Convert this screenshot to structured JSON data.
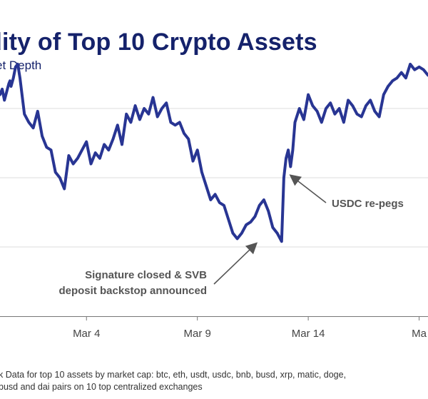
{
  "title": "dity of Top 10 Crypto Assets",
  "subtitle": "et Depth",
  "footnote": {
    "line1": "k Data for top 10 assets by market cap: btc, eth, usdt, usdc, bnb, busd, xrp, matic, doge,",
    "line2": "busd and dai pairs on 10 top centralized exchanges"
  },
  "colors": {
    "series": "#283593",
    "title": "#15226b",
    "annotation": "#555555",
    "grid": "#dcdcdc",
    "axis": "#777777"
  },
  "chart_data": {
    "type": "line",
    "title": "",
    "xlabel": "",
    "ylabel": "",
    "grid": true,
    "x_ticks": [
      "Mar 4",
      "Mar 9",
      "Mar 14",
      "Ma"
    ],
    "x_tick_days": [
      4,
      9,
      14,
      19
    ],
    "xlim": [
      0.1,
      19.4
    ],
    "ylim": [
      0,
      100
    ],
    "series": [
      {
        "name": "",
        "x": [
          0.1,
          0.2,
          0.3,
          0.4,
          0.5,
          0.55,
          0.6,
          0.7,
          0.8,
          0.9,
          1.0,
          1.2,
          1.4,
          1.6,
          1.8,
          2.0,
          2.2,
          2.4,
          2.6,
          2.8,
          3.0,
          3.2,
          3.4,
          3.6,
          3.8,
          4.0,
          4.2,
          4.4,
          4.6,
          4.8,
          5.0,
          5.2,
          5.4,
          5.6,
          5.8,
          6.0,
          6.2,
          6.4,
          6.6,
          6.8,
          7.0,
          7.2,
          7.4,
          7.6,
          7.8,
          8.0,
          8.2,
          8.4,
          8.6,
          8.8,
          9.0,
          9.2,
          9.4,
          9.6,
          9.8,
          10.0,
          10.2,
          10.4,
          10.6,
          10.8,
          11.0,
          11.2,
          11.4,
          11.6,
          11.8,
          12.0,
          12.2,
          12.4,
          12.6,
          12.8,
          12.9,
          13.0,
          13.1,
          13.2,
          13.3,
          13.4,
          13.6,
          13.8,
          14.0,
          14.1,
          14.2,
          14.4,
          14.6,
          14.8,
          15.0,
          15.2,
          15.4,
          15.6,
          15.8,
          16.0,
          16.2,
          16.4,
          16.6,
          16.8,
          17.0,
          17.2,
          17.4,
          17.6,
          17.8,
          18.0,
          18.2,
          18.4,
          18.6,
          18.8,
          19.0,
          19.2,
          19.4
        ],
        "y": [
          80,
          82,
          78,
          81,
          84,
          85,
          83,
          86,
          90,
          91,
          86,
          73,
          70,
          68,
          74,
          65,
          61,
          60,
          52,
          50,
          46,
          58,
          55,
          57,
          60,
          63,
          55,
          59,
          57,
          62,
          60,
          64,
          69,
          62,
          73,
          70,
          76,
          71,
          75,
          73,
          79,
          72,
          75,
          77,
          70,
          69,
          70,
          66,
          64,
          56,
          60,
          52,
          47,
          42,
          44,
          41,
          40,
          35,
          30,
          28,
          30,
          33,
          34,
          36,
          40,
          42,
          38,
          32,
          30,
          27,
          50,
          57,
          60,
          54,
          60,
          70,
          75,
          71,
          80,
          78,
          76,
          74,
          70,
          75,
          77,
          73,
          75,
          70,
          78,
          76,
          73,
          72,
          76,
          78,
          74,
          72,
          80,
          83,
          85,
          86,
          88,
          86,
          91,
          89,
          90,
          89,
          87
        ]
      }
    ],
    "annotations": [
      {
        "text": "USDC re-pegs",
        "x": 13.0,
        "y": 52
      },
      {
        "text": "Signature closed & SVB",
        "x": 11.8,
        "y": 30
      },
      {
        "text": "deposit backstop announced",
        "x": 11.8,
        "y": 30
      }
    ]
  }
}
